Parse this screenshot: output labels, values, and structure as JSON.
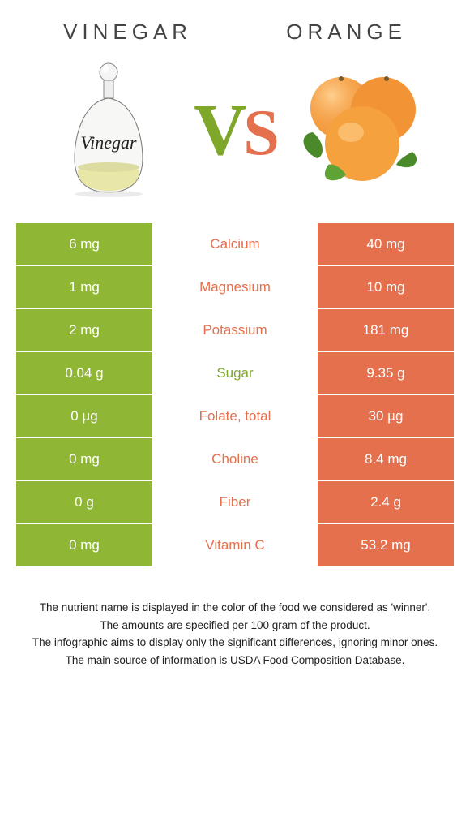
{
  "colors": {
    "left": "#8fb735",
    "right": "#e4704e",
    "left_text": "#7fa82a",
    "right_text": "#e4704e"
  },
  "left_food": "Vinegar",
  "right_food": "Orange",
  "bottle_label": "Vinegar",
  "rows": [
    {
      "left": "6 mg",
      "name": "Calcium",
      "right": "40 mg",
      "winner": "right"
    },
    {
      "left": "1 mg",
      "name": "Magnesium",
      "right": "10 mg",
      "winner": "right"
    },
    {
      "left": "2 mg",
      "name": "Potassium",
      "right": "181 mg",
      "winner": "right"
    },
    {
      "left": "0.04 g",
      "name": "Sugar",
      "right": "9.35 g",
      "winner": "left"
    },
    {
      "left": "0 µg",
      "name": "Folate, total",
      "right": "30 µg",
      "winner": "right"
    },
    {
      "left": "0 mg",
      "name": "Choline",
      "right": "8.4 mg",
      "winner": "right"
    },
    {
      "left": "0 g",
      "name": "Fiber",
      "right": "2.4 g",
      "winner": "right"
    },
    {
      "left": "0 mg",
      "name": "Vitamin C",
      "right": "53.2 mg",
      "winner": "right"
    }
  ],
  "footer": [
    "The nutrient name is displayed in the color of the food we considered as 'winner'.",
    "The amounts are specified per 100 gram of the product.",
    "The infographic aims to display only the significant differences, ignoring minor ones.",
    "The main source of information is USDA Food Composition Database."
  ]
}
